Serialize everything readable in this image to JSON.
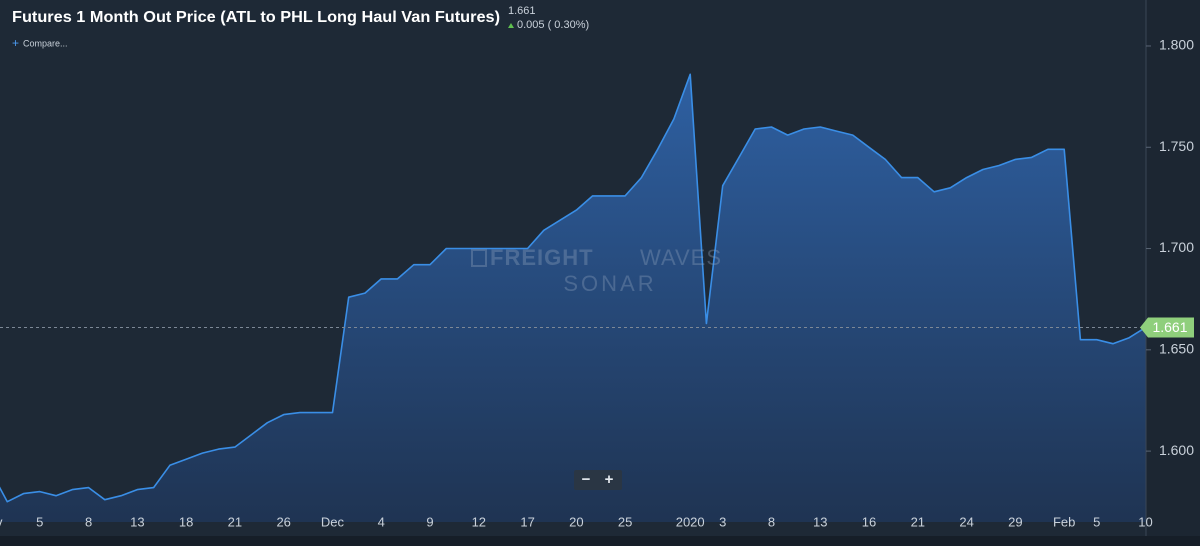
{
  "chart_data": {
    "type": "area",
    "title": "Futures 1 Month Out Price (ATL to PHL Long Haul Van Futures)",
    "last_price": 1.661,
    "change_text": "0.005 ( 0.30%)",
    "categories": [
      "Nov",
      null,
      null,
      "5",
      null,
      null,
      "8",
      null,
      null,
      "13",
      null,
      null,
      "18",
      null,
      null,
      "21",
      null,
      null,
      "26",
      null,
      null,
      "Dec",
      null,
      null,
      "4",
      null,
      null,
      "9",
      null,
      null,
      "12",
      null,
      null,
      "17",
      null,
      null,
      "20",
      null,
      null,
      "25",
      null,
      null,
      null,
      "2020",
      null,
      "3",
      null,
      null,
      "8",
      null,
      null,
      "13",
      null,
      null,
      "16",
      null,
      null,
      "21",
      null,
      null,
      "24",
      null,
      null,
      "29",
      null,
      null,
      "Feb",
      null,
      "5",
      null,
      null,
      "10"
    ],
    "values": [
      1.59,
      1.575,
      1.579,
      1.58,
      1.578,
      1.581,
      1.582,
      1.576,
      1.578,
      1.581,
      1.582,
      1.593,
      1.596,
      1.599,
      1.601,
      1.602,
      1.608,
      1.614,
      1.618,
      1.619,
      1.619,
      1.619,
      1.676,
      1.678,
      1.685,
      1.685,
      1.692,
      1.692,
      1.7,
      1.7,
      1.7,
      1.7,
      1.7,
      1.7,
      1.709,
      1.714,
      1.719,
      1.726,
      1.726,
      1.726,
      1.735,
      1.749,
      1.764,
      1.786,
      1.663,
      1.731,
      1.745,
      1.759,
      1.76,
      1.756,
      1.759,
      1.76,
      1.758,
      1.756,
      1.75,
      1.744,
      1.735,
      1.735,
      1.728,
      1.73,
      1.735,
      1.739,
      1.741,
      1.744,
      1.745,
      1.749,
      1.749,
      1.655,
      1.655,
      1.653,
      1.656,
      1.661
    ],
    "color": "#3a8ee6",
    "ylim": [
      1.565,
      1.8227
    ],
    "yticks": [
      {
        "value": 1.6,
        "label": "1.600"
      },
      {
        "value": 1.65,
        "label": "1.650"
      },
      {
        "value": 1.7,
        "label": "1.700"
      },
      {
        "value": 1.75,
        "label": "1.750"
      },
      {
        "value": 1.8,
        "label": "1.800"
      }
    ]
  },
  "ui": {
    "compare": "Compare...",
    "zoom_out": "−",
    "zoom_in": "+",
    "watermark_bold": "FREIGHT",
    "watermark_light": "WAVES",
    "watermark_sub": "SONAR"
  }
}
